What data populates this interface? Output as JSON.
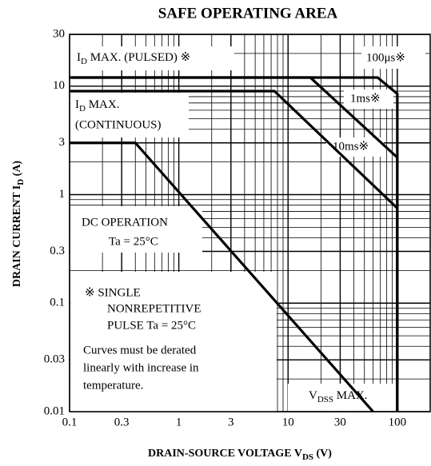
{
  "chart_data": {
    "type": "line",
    "title": "SAFE OPERATING AREA",
    "x_label": {
      "text": "DRAIN-SOURCE VOLTAGE  V",
      "sub": "DS",
      "rest": "  (V)"
    },
    "y_label": {
      "text": "DRAIN CURRENT  I",
      "sub": "D",
      "rest": "  (A)"
    },
    "log_x": true,
    "log_y": true,
    "grid": true,
    "color": "#000000",
    "xlim": [
      0.1,
      200
    ],
    "ylim": [
      0.01,
      30
    ],
    "xticks": [
      0.1,
      0.3,
      1,
      3,
      10,
      30,
      100
    ],
    "yticks": [
      0.01,
      0.03,
      0.1,
      0.3,
      1,
      3,
      10,
      30
    ],
    "series": [
      {
        "x": [
          0.1,
          66,
          100,
          100
        ],
        "values": [
          12,
          12,
          8.5,
          0.01
        ]
      },
      {
        "x": [
          0.1,
          16,
          100,
          100
        ],
        "values": [
          12,
          12,
          2.2,
          0.01
        ]
      },
      {
        "x": [
          0.1,
          7.5,
          100,
          100
        ],
        "values": [
          9,
          9,
          0.75,
          0.01
        ]
      },
      {
        "x": [
          0.1,
          0.4,
          60
        ],
        "values": [
          3,
          3,
          0.01
        ]
      }
    ],
    "annotations": {
      "pulsed": {
        "text": "I",
        "sub": "D",
        "rest": " MAX. (PULSED) ※"
      },
      "us100": "100μs※",
      "ms1": "1ms※",
      "continuous": {
        "text": "I",
        "sub": "D",
        "rest": " MAX."
      },
      "continuous2": "(CONTINUOUS)",
      "ms10": "10ms※",
      "dc": "DC OPERATION",
      "ta": "Ta = 25°C",
      "note": [
        "※  SINGLE",
        "NONREPETITIVE",
        "PULSE Ta = 25°C"
      ],
      "derate": [
        "Curves must be derated",
        "linearly with increase in",
        "temperature."
      ],
      "vdss": {
        "text": "V",
        "sub": "DSS",
        "rest": " MAX."
      }
    }
  }
}
